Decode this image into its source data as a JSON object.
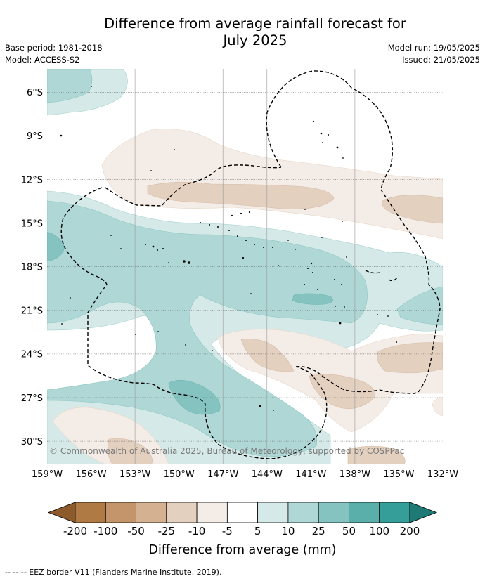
{
  "title": {
    "line1": "Difference from average rainfall forecast for",
    "line2": "July 2025"
  },
  "meta_left": {
    "base_period": "Base period: 1981-2018",
    "model": "Model: ACCESS-S2"
  },
  "meta_right": {
    "model_run": "Model run: 19/05/2025",
    "issued": "Issued: 21/05/2025"
  },
  "map": {
    "lon_range": [
      -159,
      -132
    ],
    "lat_range": [
      -31.6,
      -4.4
    ],
    "latitude_labels": [
      "6°S",
      "9°S",
      "12°S",
      "15°S",
      "18°S",
      "21°S",
      "24°S",
      "27°S",
      "30°S"
    ],
    "longitude_labels": [
      "159°W",
      "156°W",
      "153°W",
      "150°W",
      "147°W",
      "144°W",
      "141°W",
      "138°W",
      "135°W",
      "132°W"
    ],
    "copyright": "© Commonwealth of Australia 2025, Bureau of Meteorology, supported by COSPPac"
  },
  "colorbar": {
    "ticks": [
      "-200",
      "-100",
      "-50",
      "-25",
      "-10",
      "-5",
      "5",
      "10",
      "25",
      "50",
      "100",
      "200"
    ],
    "colors": [
      "#8c5a2b",
      "#b07a44",
      "#c4956a",
      "#d4b291",
      "#e4d0bf",
      "#f4ece6",
      "#ffffff",
      "#d5eae8",
      "#afd7d5",
      "#85c3c0",
      "#5bafab",
      "#359e98",
      "#1f7a75"
    ],
    "title": "Difference from average (mm)"
  },
  "footnote": "--  --  -- EEZ border V11 (Flanders Marine Institute, 2019)."
}
